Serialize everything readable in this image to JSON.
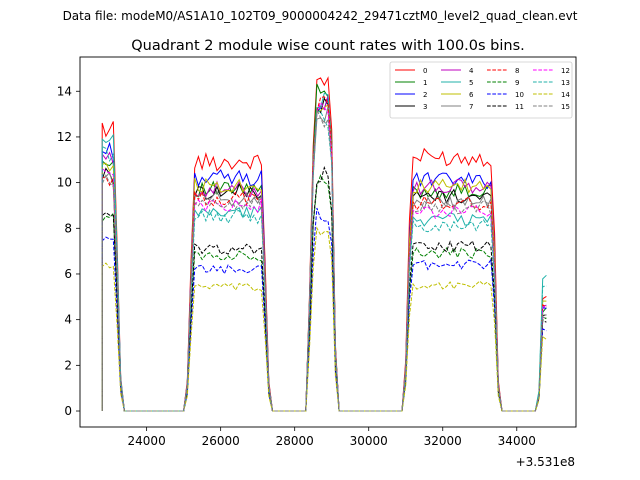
{
  "chart_data": {
    "type": "line",
    "suptitle": "Data file: modeM0/AS1A10_102T09_9000004242_29471cztM0_level2_quad_clean.evt",
    "title": "Quadrant 2 module wise count rates with 100.0s bins.",
    "xlabel": "",
    "ylabel": "",
    "offset_text": "+3.531e8",
    "xlim": [
      22200,
      35600
    ],
    "ylim": [
      -0.7,
      15.5
    ],
    "xticks": [
      24000,
      26000,
      28000,
      30000,
      32000,
      34000
    ],
    "xtick_labels": [
      "24000",
      "26000",
      "28000",
      "30000",
      "32000",
      "34000"
    ],
    "yticks": [
      0,
      2,
      4,
      6,
      8,
      10,
      12,
      14
    ],
    "ytick_labels": [
      "0",
      "2",
      "4",
      "6",
      "8",
      "10",
      "12",
      "14"
    ],
    "legend_position": "top-right",
    "legend_columns": 4,
    "segments": [
      {
        "start": 22800,
        "end": 23100,
        "ramp_up": [],
        "ramp_down": [
          0.6,
          0.12
        ]
      },
      {
        "start": 25300,
        "end": 27100,
        "ramp_up": [
          0.12,
          0.6
        ],
        "ramp_down": [
          0.6,
          0.12
        ]
      },
      {
        "start": 28600,
        "end": 28900,
        "ramp_up": [
          0.35,
          0.8
        ],
        "ramp_down": [
          0.85,
          0.2
        ]
      },
      {
        "start": 31200,
        "end": 33300,
        "ramp_up": [
          0.2,
          0.75
        ],
        "ramp_down": [
          0.7,
          0.12
        ]
      },
      {
        "start": 34700,
        "end": 34800,
        "ramp_up": [
          0.15
        ],
        "ramp_down": []
      }
    ],
    "series": [
      {
        "name": "0",
        "color": "#ff0000",
        "dashed": false,
        "levels": [
          12.4,
          10.9,
          14.5,
          11.1,
          5.0
        ]
      },
      {
        "name": "1",
        "color": "#008000",
        "dashed": false,
        "levels": [
          10.9,
          9.7,
          13.9,
          9.6,
          4.4
        ]
      },
      {
        "name": "2",
        "color": "#0000ff",
        "dashed": false,
        "levels": [
          11.4,
          10.2,
          13.5,
          10.1,
          4.5
        ]
      },
      {
        "name": "3",
        "color": "#000000",
        "dashed": false,
        "levels": [
          10.3,
          9.6,
          13.3,
          9.4,
          4.1
        ]
      },
      {
        "name": "4",
        "color": "#bf00bf",
        "dashed": false,
        "levels": [
          11.0,
          9.7,
          13.6,
          9.8,
          4.6
        ]
      },
      {
        "name": "5",
        "color": "#20b2aa",
        "dashed": false,
        "levels": [
          11.7,
          8.7,
          13.7,
          8.4,
          5.9
        ]
      },
      {
        "name": "6",
        "color": "#bfbf00",
        "dashed": false,
        "levels": [
          10.8,
          9.9,
          13.4,
          9.8,
          4.9
        ]
      },
      {
        "name": "7",
        "color": "#808080",
        "dashed": false,
        "levels": [
          10.2,
          9.3,
          13.0,
          9.1,
          4.0
        ]
      },
      {
        "name": "8",
        "color": "#ff0000",
        "dashed": true,
        "levels": [
          10.2,
          9.3,
          13.5,
          9.1,
          4.5
        ]
      },
      {
        "name": "9",
        "color": "#008000",
        "dashed": true,
        "levels": [
          8.6,
          6.8,
          10.2,
          6.9,
          4.0
        ]
      },
      {
        "name": "10",
        "color": "#0000ff",
        "dashed": true,
        "levels": [
          7.4,
          6.2,
          8.6,
          6.4,
          3.6
        ]
      },
      {
        "name": "11",
        "color": "#000000",
        "dashed": true,
        "levels": [
          8.5,
          7.1,
          10.3,
          7.2,
          3.9
        ]
      },
      {
        "name": "12",
        "color": "#ff00ff",
        "dashed": true,
        "levels": [
          10.7,
          9.0,
          13.2,
          8.7,
          4.7
        ]
      },
      {
        "name": "13",
        "color": "#20b2aa",
        "dashed": true,
        "levels": [
          11.3,
          8.5,
          12.8,
          8.1,
          5.6
        ]
      },
      {
        "name": "14",
        "color": "#bfbf00",
        "dashed": true,
        "levels": [
          6.4,
          5.4,
          7.8,
          5.5,
          3.2
        ]
      },
      {
        "name": "15",
        "color": "#808080",
        "dashed": true,
        "levels": [
          10.0,
          9.1,
          12.8,
          8.9,
          4.3
        ]
      }
    ]
  }
}
